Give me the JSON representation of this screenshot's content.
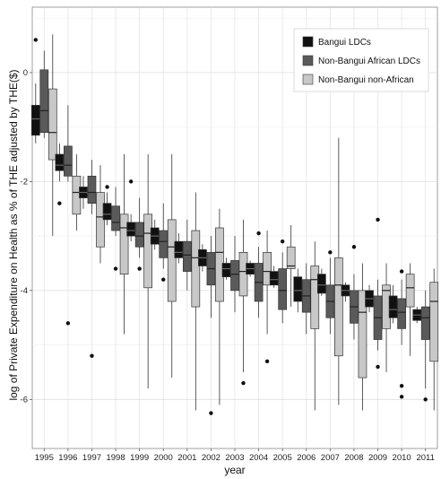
{
  "chart_data": {
    "type": "box",
    "xlabel": "year",
    "ylabel": "log of Private Expenditure on Health as % of THE adjusted by THE($)",
    "ylim": [
      -6.9,
      1.2
    ],
    "yticks": [
      0,
      -2,
      -4,
      -6
    ],
    "grid": true,
    "legend_position": "top-right",
    "categories": [
      "1995",
      "1996",
      "1997",
      "1998",
      "1999",
      "2000",
      "2001",
      "2002",
      "2003",
      "2004",
      "2005",
      "2006",
      "2007",
      "2008",
      "2009",
      "2010",
      "2011"
    ],
    "series": [
      {
        "name": "Bangui LDCs",
        "color": "#111111",
        "boxes": [
          {
            "whislo": -1.3,
            "q1": -1.15,
            "med": -0.85,
            "q3": -0.6,
            "whishi": -0.2,
            "outliers": [
              0.6
            ]
          },
          {
            "whislo": -2.0,
            "q1": -1.8,
            "med": -1.7,
            "q3": -1.5,
            "whishi": -1.3,
            "outliers": [
              -2.4
            ]
          },
          {
            "whislo": -2.5,
            "q1": -2.3,
            "med": -2.2,
            "q3": -2.1,
            "whishi": -1.9,
            "outliers": []
          },
          {
            "whislo": -2.8,
            "q1": -2.7,
            "med": -2.6,
            "q3": -2.4,
            "whishi": -2.2,
            "outliers": [
              -2.1
            ]
          },
          {
            "whislo": -3.1,
            "q1": -3.0,
            "med": -2.9,
            "q3": -2.75,
            "whishi": -2.6,
            "outliers": [
              -2.0
            ]
          },
          {
            "whislo": -3.25,
            "q1": -3.15,
            "med": -3.0,
            "q3": -2.85,
            "whishi": -2.7,
            "outliers": []
          },
          {
            "whislo": -3.5,
            "q1": -3.4,
            "med": -3.3,
            "q3": -3.1,
            "whishi": -2.95,
            "outliers": []
          },
          {
            "whislo": -3.65,
            "q1": -3.55,
            "med": -3.4,
            "q3": -3.25,
            "whishi": -3.15,
            "outliers": []
          },
          {
            "whislo": -3.8,
            "q1": -3.75,
            "med": -3.6,
            "q3": -3.5,
            "whishi": -3.4,
            "outliers": []
          },
          {
            "whislo": -3.75,
            "q1": -3.7,
            "med": -3.6,
            "q3": -3.5,
            "whishi": -3.45,
            "outliers": []
          },
          {
            "whislo": -3.95,
            "q1": -3.9,
            "med": -3.8,
            "q3": -3.65,
            "whishi": -3.55,
            "outliers": []
          },
          {
            "whislo": -4.4,
            "q1": -4.2,
            "med": -4.0,
            "q3": -3.75,
            "whishi": -3.6,
            "outliers": []
          },
          {
            "whislo": -4.1,
            "q1": -4.05,
            "med": -3.9,
            "q3": -3.7,
            "whishi": -3.6,
            "outliers": []
          },
          {
            "whislo": -4.2,
            "q1": -4.1,
            "med": -4.0,
            "q3": -3.9,
            "whishi": -3.85,
            "outliers": []
          },
          {
            "whislo": -4.4,
            "q1": -4.3,
            "med": -4.15,
            "q3": -4.0,
            "whishi": -3.9,
            "outliers": []
          },
          {
            "whislo": -4.6,
            "q1": -4.5,
            "med": -4.35,
            "q3": -4.1,
            "whishi": -3.9,
            "outliers": []
          },
          {
            "whislo": -4.6,
            "q1": -4.55,
            "med": -4.45,
            "q3": -4.35,
            "whishi": -4.3,
            "outliers": []
          }
        ]
      },
      {
        "name": "Non-Bangui African LDCs",
        "color": "#5a5a5a",
        "boxes": [
          {
            "whislo": -1.2,
            "q1": -1.1,
            "med": -0.7,
            "q3": 0.05,
            "whishi": 0.4,
            "outliers": []
          },
          {
            "whislo": -2.0,
            "q1": -1.9,
            "med": -1.7,
            "q3": -1.35,
            "whishi": -0.6,
            "outliers": [
              -4.6
            ]
          },
          {
            "whislo": -2.6,
            "q1": -2.4,
            "med": -2.2,
            "q3": -1.9,
            "whishi": -1.6,
            "outliers": [
              -5.2
            ]
          },
          {
            "whislo": -3.0,
            "q1": -2.9,
            "med": -2.75,
            "q3": -2.45,
            "whishi": -2.1,
            "outliers": [
              -3.6
            ]
          },
          {
            "whislo": -3.4,
            "q1": -3.2,
            "med": -3.0,
            "q3": -2.75,
            "whishi": -2.3,
            "outliers": [
              -3.6
            ]
          },
          {
            "whislo": -3.6,
            "q1": -3.4,
            "med": -3.1,
            "q3": -2.9,
            "whishi": -2.4,
            "outliers": [
              -3.8
            ]
          },
          {
            "whislo": -4.0,
            "q1": -3.65,
            "med": -3.35,
            "q3": -3.1,
            "whishi": -2.7,
            "outliers": []
          },
          {
            "whislo": -4.5,
            "q1": -3.9,
            "med": -3.6,
            "q3": -3.3,
            "whishi": -3.0,
            "outliers": [
              -6.25
            ]
          },
          {
            "whislo": -4.4,
            "q1": -4.0,
            "med": -3.7,
            "q3": -3.45,
            "whishi": -3.0,
            "outliers": []
          },
          {
            "whislo": -4.5,
            "q1": -4.2,
            "med": -3.85,
            "q3": -3.5,
            "whishi": -3.2,
            "outliers": [
              -2.95
            ]
          },
          {
            "whislo": -4.6,
            "q1": -4.35,
            "med": -4.0,
            "q3": -3.6,
            "whishi": -3.3,
            "outliers": [
              -3.1
            ]
          },
          {
            "whislo": -4.8,
            "q1": -4.4,
            "med": -4.1,
            "q3": -3.8,
            "whishi": -3.5,
            "outliers": []
          },
          {
            "whislo": -4.8,
            "q1": -4.5,
            "med": -4.2,
            "q3": -3.9,
            "whishi": -3.4,
            "outliers": [
              -3.3
            ]
          },
          {
            "whislo": -4.9,
            "q1": -4.6,
            "med": -4.3,
            "q3": -4.0,
            "whishi": -3.7,
            "outliers": [
              -3.2
            ]
          },
          {
            "whislo": -5.1,
            "q1": -4.9,
            "med": -4.5,
            "q3": -4.1,
            "whishi": -3.8,
            "outliers": [
              -2.7,
              -5.4
            ]
          },
          {
            "whislo": -5.0,
            "q1": -4.7,
            "med": -4.4,
            "q3": -4.15,
            "whishi": -3.8,
            "outliers": [
              -3.65,
              -5.75,
              -5.95
            ]
          },
          {
            "whislo": -5.8,
            "q1": -4.9,
            "med": -4.5,
            "q3": -4.3,
            "whishi": -4.0,
            "outliers": [
              -6.0
            ]
          }
        ]
      },
      {
        "name": "Non-Bangui non-African",
        "color": "#c8c8c8",
        "boxes": [
          {
            "whislo": -3.0,
            "q1": -1.6,
            "med": -1.1,
            "q3": -0.3,
            "whishi": 0.7,
            "outliers": []
          },
          {
            "whislo": -2.9,
            "q1": -2.6,
            "med": -2.2,
            "q3": -1.9,
            "whishi": -1.5,
            "outliers": []
          },
          {
            "whislo": -3.5,
            "q1": -3.2,
            "med": -2.65,
            "q3": -2.2,
            "whishi": -1.7,
            "outliers": []
          },
          {
            "whislo": -4.8,
            "q1": -3.7,
            "med": -2.85,
            "q3": -2.6,
            "whishi": -1.5,
            "outliers": []
          },
          {
            "whislo": -5.8,
            "q1": -3.95,
            "med": -2.95,
            "q3": -2.6,
            "whishi": -1.5,
            "outliers": []
          },
          {
            "whislo": -5.6,
            "q1": -4.2,
            "med": -3.2,
            "q3": -2.7,
            "whishi": -1.5,
            "outliers": []
          },
          {
            "whislo": -6.2,
            "q1": -4.3,
            "med": -3.4,
            "q3": -2.9,
            "whishi": -2.2,
            "outliers": []
          },
          {
            "whislo": -6.1,
            "q1": -4.2,
            "med": -3.3,
            "q3": -2.85,
            "whishi": -2.5,
            "outliers": []
          },
          {
            "whislo": -5.5,
            "q1": -4.1,
            "med": -3.65,
            "q3": -3.3,
            "whishi": -2.7,
            "outliers": [
              -5.7
            ]
          },
          {
            "whislo": -4.8,
            "q1": -3.9,
            "med": -3.65,
            "q3": -3.3,
            "whishi": -2.9,
            "outliers": [
              -5.3
            ]
          },
          {
            "whislo": -4.3,
            "q1": -3.6,
            "med": -3.55,
            "q3": -3.2,
            "whishi": -2.8,
            "outliers": []
          },
          {
            "whislo": -6.2,
            "q1": -4.7,
            "med": -3.8,
            "q3": -3.55,
            "whishi": -3.1,
            "outliers": []
          },
          {
            "whislo": -6.1,
            "q1": -5.2,
            "med": -3.9,
            "q3": -3.4,
            "whishi": -1.2,
            "outliers": []
          },
          {
            "whislo": -6.2,
            "q1": -5.6,
            "med": -4.4,
            "q3": -4.0,
            "whishi": -3.5,
            "outliers": []
          },
          {
            "whislo": -5.5,
            "q1": -4.7,
            "med": -4.0,
            "q3": -3.9,
            "whishi": -3.5,
            "outliers": []
          },
          {
            "whislo": -5.2,
            "q1": -4.3,
            "med": -3.95,
            "q3": -3.7,
            "whishi": -3.5,
            "outliers": []
          },
          {
            "whislo": -6.2,
            "q1": -5.3,
            "med": -4.2,
            "q3": -3.85,
            "whishi": -3.6,
            "outliers": []
          }
        ]
      }
    ]
  }
}
